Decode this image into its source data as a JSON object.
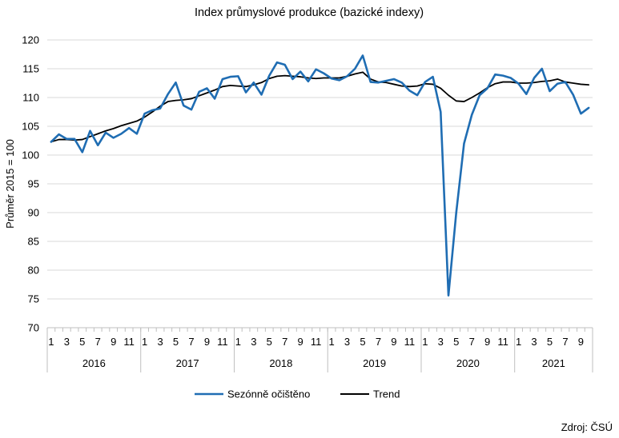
{
  "chart_data": {
    "type": "line",
    "title": "Index průmyslové produkce (bazické indexy)",
    "ylabel": "Průměr 2015 = 100",
    "xlabel": "",
    "ylim": [
      70,
      120
    ],
    "yticks": [
      70,
      75,
      80,
      85,
      90,
      95,
      100,
      105,
      110,
      115,
      120
    ],
    "grid": "horizontal",
    "legend": "bottom",
    "years": [
      "2016",
      "2017",
      "2018",
      "2019",
      "2020",
      "2021"
    ],
    "month_tick_labels": [
      "1",
      "3",
      "5",
      "7",
      "9",
      "11"
    ],
    "months_total": 70,
    "series": [
      {
        "name": "Sezónně očištěno",
        "color": "#1f6db3",
        "values": [
          102.3,
          103.6,
          102.8,
          102.8,
          100.5,
          104.2,
          101.7,
          103.9,
          103.0,
          103.7,
          104.7,
          103.7,
          107.2,
          107.8,
          108.1,
          110.6,
          112.6,
          108.6,
          107.9,
          111.0,
          111.6,
          109.8,
          113.2,
          113.6,
          113.7,
          110.9,
          112.6,
          110.5,
          113.8,
          116.1,
          115.7,
          113.2,
          114.5,
          112.8,
          114.9,
          114.2,
          113.3,
          113.0,
          113.7,
          115.0,
          117.3,
          112.7,
          112.6,
          112.9,
          113.2,
          112.6,
          111.2,
          110.4,
          112.7,
          113.6,
          107.5,
          75.6,
          90.0,
          102.0,
          107.0,
          110.4,
          111.6,
          114.0,
          113.8,
          113.4,
          112.4,
          110.6,
          113.4,
          115.0,
          111.1,
          112.4,
          112.7,
          110.5,
          107.2,
          108.2
        ]
      },
      {
        "name": "Trend",
        "color": "#000000",
        "values": [
          102.3,
          102.7,
          102.7,
          102.6,
          102.7,
          103.2,
          103.7,
          104.2,
          104.6,
          105.1,
          105.5,
          105.9,
          106.6,
          107.5,
          108.5,
          109.3,
          109.5,
          109.6,
          109.8,
          110.3,
          110.8,
          111.3,
          111.9,
          112.1,
          112.0,
          111.9,
          112.2,
          112.6,
          113.3,
          113.7,
          113.8,
          113.7,
          113.6,
          113.4,
          113.3,
          113.4,
          113.4,
          113.4,
          113.7,
          114.1,
          114.4,
          113.2,
          112.7,
          112.6,
          112.3,
          112.0,
          111.9,
          112.0,
          112.4,
          112.3,
          111.6,
          110.4,
          109.4,
          109.3,
          110.0,
          110.8,
          111.7,
          112.4,
          112.7,
          112.7,
          112.5,
          112.5,
          112.6,
          112.8,
          112.9,
          113.2,
          112.7,
          112.5,
          112.3,
          112.2
        ]
      }
    ]
  },
  "source_text": "Zdroj: ČSÚ"
}
